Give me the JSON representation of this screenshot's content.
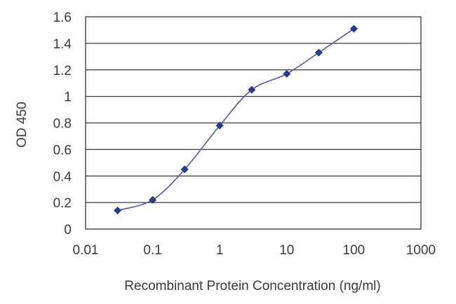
{
  "chart_data": {
    "type": "line",
    "title": "",
    "xlabel": "Recombinant Protein Concentration (ng/ml)",
    "ylabel": "OD 450",
    "x_scale": "log",
    "xlim": [
      0.01,
      1000
    ],
    "ylim": [
      0,
      1.6
    ],
    "x_ticks": [
      "0.01",
      "0.1",
      "1",
      "10",
      "100",
      "1000"
    ],
    "y_ticks": [
      "0",
      "0.2",
      "0.4",
      "0.6",
      "0.8",
      "1",
      "1.2",
      "1.4",
      "1.6"
    ],
    "grid": "horizontal",
    "legend": "none",
    "series": [
      {
        "x": [
          0.03,
          0.1,
          0.3,
          1,
          3,
          10,
          30,
          100
        ],
        "values": [
          0.14,
          0.22,
          0.45,
          0.78,
          1.05,
          1.17,
          1.33,
          1.51
        ],
        "color": "#2b3a8c",
        "marker": "diamond"
      }
    ]
  }
}
